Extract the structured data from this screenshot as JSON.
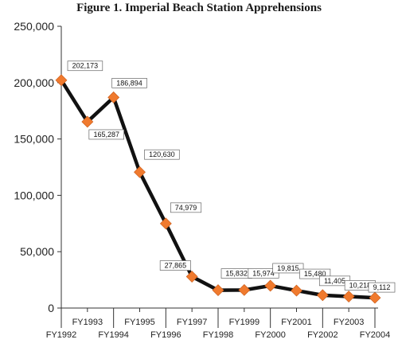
{
  "chart_data": {
    "type": "line",
    "title": "Figure 1. Imperial Beach Station Apprehensions",
    "xlabel": "",
    "ylabel": "",
    "ylim": [
      0,
      250000
    ],
    "yticks": [
      0,
      50000,
      100000,
      150000,
      200000,
      250000
    ],
    "ytick_labels": [
      "0",
      "50,000",
      "100,000",
      "150,000",
      "200,000",
      "250,000"
    ],
    "grid": false,
    "categories": [
      "FY1992",
      "FY1993",
      "FY1994",
      "FY1995",
      "FY1996",
      "FY1997",
      "FY1998",
      "FY1999",
      "FY2000",
      "FY2001",
      "FY2002",
      "FY2003",
      "FY2004"
    ],
    "series": [
      {
        "values": [
          202173,
          165287,
          186894,
          120630,
          74979,
          27865,
          15832,
          15974,
          19815,
          15480,
          11405,
          10218,
          9112
        ],
        "labels": [
          "202,173",
          "165,287",
          "186,894",
          "120,630",
          "74,979",
          "27,865",
          "15,832",
          "15,974",
          "19,815",
          "15,480",
          "11,405",
          "10,218",
          "9,112"
        ],
        "line_color": "#111111",
        "marker_color": "#f07a2e",
        "marker": "diamond"
      }
    ]
  }
}
